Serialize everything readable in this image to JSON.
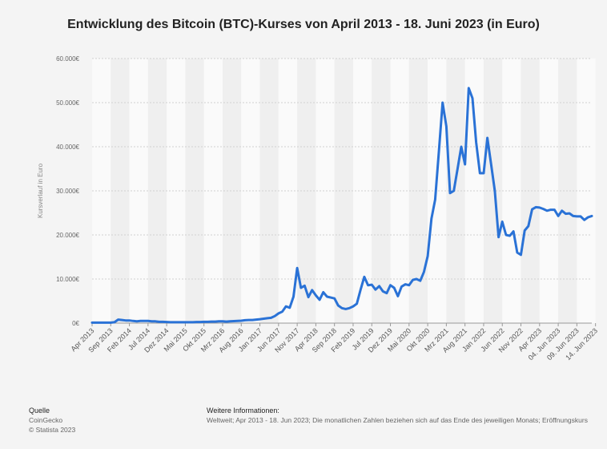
{
  "chart_data": {
    "type": "line",
    "title": "Entwicklung des Bitcoin (BTC)-Kurses von April 2013 - 18. Juni 2023 (in Euro)",
    "ylabel": "Kursverlauf in Euro",
    "xlabel": "",
    "ylim": [
      0,
      60000
    ],
    "y_ticks": [
      "0€",
      "10.000€",
      "20.000€",
      "30.000€",
      "40.000€",
      "50.000€",
      "60.000€"
    ],
    "x_tick_labels": [
      {
        "i": 0,
        "label": "Apr 2013"
      },
      {
        "i": 5,
        "label": "Sep 2013"
      },
      {
        "i": 10,
        "label": "Feb 2014"
      },
      {
        "i": 15,
        "label": "Jul 2014"
      },
      {
        "i": 20,
        "label": "Dez 2014"
      },
      {
        "i": 25,
        "label": "Mai 2015"
      },
      {
        "i": 30,
        "label": "Okt 2015"
      },
      {
        "i": 35,
        "label": "Mrz 2016"
      },
      {
        "i": 40,
        "label": "Aug 2016"
      },
      {
        "i": 45,
        "label": "Jan 2017"
      },
      {
        "i": 50,
        "label": "Jun 2017"
      },
      {
        "i": 55,
        "label": "Nov 2017"
      },
      {
        "i": 60,
        "label": "Apr 2018"
      },
      {
        "i": 65,
        "label": "Sep 2018"
      },
      {
        "i": 70,
        "label": "Feb 2019"
      },
      {
        "i": 75,
        "label": "Jul 2019"
      },
      {
        "i": 80,
        "label": "Dez 2019"
      },
      {
        "i": 85,
        "label": "Mai 2020"
      },
      {
        "i": 90,
        "label": "Okt 2020"
      },
      {
        "i": 95,
        "label": "Mrz 2021"
      },
      {
        "i": 100,
        "label": "Aug 2021"
      },
      {
        "i": 105,
        "label": "Jan 2022"
      },
      {
        "i": 110,
        "label": "Jun 2022"
      },
      {
        "i": 115,
        "label": "Nov 2022"
      },
      {
        "i": 120,
        "label": "Apr 2023"
      },
      {
        "i": 125,
        "label": "04. Jun 2023"
      },
      {
        "i": 130,
        "label": "09. Jun 2023"
      },
      {
        "i": 135,
        "label": "14. Jun 2023"
      }
    ],
    "series": [
      {
        "color": "#2a72d6",
        "values": [
          100,
          100,
          100,
          100,
          100,
          100,
          200,
          800,
          700,
          600,
          600,
          500,
          400,
          500,
          500,
          500,
          400,
          400,
          300,
          300,
          250,
          200,
          200,
          200,
          200,
          200,
          200,
          200,
          250,
          250,
          300,
          300,
          350,
          350,
          400,
          400,
          350,
          400,
          450,
          500,
          550,
          650,
          700,
          700,
          800,
          900,
          1000,
          1100,
          1200,
          1600,
          2200,
          2600,
          3800,
          3500,
          6000,
          12500,
          8000,
          8500,
          5900,
          7500,
          6300,
          5300,
          7000,
          6000,
          5800,
          5600,
          4000,
          3400,
          3200,
          3400,
          3800,
          4400,
          7600,
          10500,
          8600,
          8700,
          7600,
          8400,
          7200,
          6800,
          8600,
          8000,
          6100,
          8300,
          8800,
          8600,
          9800,
          10000,
          9600,
          11600,
          15200,
          23700,
          28000,
          39000,
          50000,
          44600,
          29500,
          30000,
          35000,
          40000,
          36000,
          53300,
          51000,
          41000,
          34000,
          34000,
          42000,
          36000,
          30000,
          19500,
          23000,
          20000,
          19800,
          20800,
          16000,
          15500,
          21000,
          22000,
          25800,
          26300,
          26200,
          25900,
          25500,
          25700,
          25700,
          24300,
          25500,
          24800,
          24900,
          24300,
          24200,
          24200,
          23400,
          24000,
          24300
        ]
      }
    ]
  },
  "footer": {
    "source_heading": "Quelle",
    "source_name": "CoinGecko",
    "source_copyright": "© Statista 2023",
    "info_heading": "Weitere Informationen:",
    "info_text": "Weltweit; Apr 2013 - 18. Jun 2023; Die monatlichen Zahlen beziehen sich auf das Ende des jeweiligen Monats; Eröffnungskurs"
  },
  "colors": {
    "background": "#f4f4f4",
    "band_light": "#fafafa",
    "band_dark": "#efefef",
    "grid": "#d0d0d0"
  }
}
